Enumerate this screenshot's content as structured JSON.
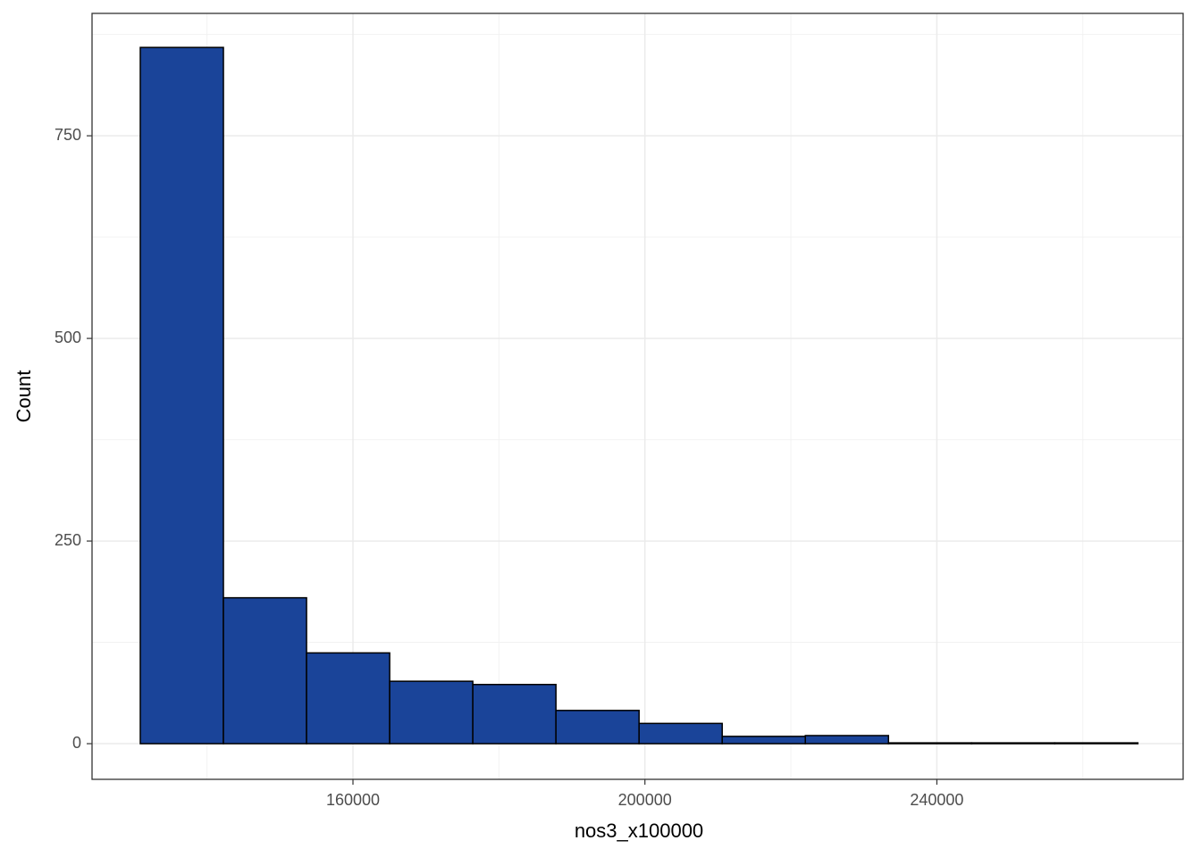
{
  "chart_data": {
    "type": "histogram",
    "x_label": "nos3_x100000",
    "y_label": "Count",
    "bins": [
      130860,
      142250,
      153640,
      165030,
      176420,
      187810,
      199200,
      210590,
      221980,
      233370,
      244760,
      256150,
      267540
    ],
    "values": [
      859,
      180,
      112,
      77,
      73,
      41,
      25,
      9,
      10,
      1,
      1,
      1
    ],
    "color": "#1a4499",
    "xlim": [
      124250,
      273740
    ],
    "xticks": [
      160000,
      200000,
      240000
    ],
    "ylim": [
      -44,
      901
    ],
    "yticks": [
      0,
      250,
      500,
      750
    ],
    "grid": true
  }
}
